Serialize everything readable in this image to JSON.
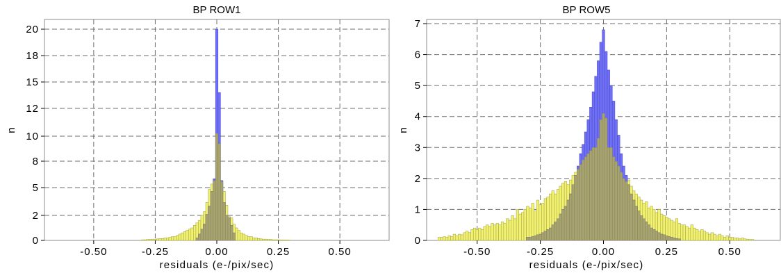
{
  "colors": {
    "blue_fill": "#7070f2",
    "blue_edge": "#4a4ad8",
    "yellow_fill": "#f2f270",
    "yellow_edge": "#a8a84a",
    "overlap_fill": "#a8a470",
    "grid": "#6e6e6e"
  },
  "chart_data": [
    {
      "type": "histogram",
      "title": "BP ROW1",
      "xlabel": "residuals (e-/pix/sec)",
      "ylabel": "n",
      "xlim": [
        -0.7,
        0.7
      ],
      "ylim": [
        0,
        20
      ],
      "y_scale": "nonlinear (tick labels as printed)",
      "x_ticks": [
        -0.5,
        -0.25,
        0.0,
        0.25,
        0.5
      ],
      "x_tick_labels": [
        "-0.50",
        "-0.25",
        "0.00",
        "0.25",
        "0.50"
      ],
      "y_tick_labels": [
        "0",
        "2",
        "5",
        "8",
        "10",
        "12",
        "15",
        "18",
        "20"
      ],
      "grid": true,
      "bin_width": 0.01,
      "series": [
        {
          "color": "blue",
          "x": [
            -0.08,
            -0.07,
            -0.06,
            -0.05,
            -0.04,
            -0.03,
            -0.02,
            -0.01,
            0.0,
            0.01,
            0.02,
            0.03,
            0.04,
            0.05,
            0.06,
            0.07
          ],
          "values": [
            0.2,
            0.5,
            0.9,
            1.3,
            2.1,
            3.0,
            4.6,
            6.0,
            20.0,
            13.8,
            5.8,
            3.4,
            2.0,
            1.8,
            1.2,
            0.6
          ]
        },
        {
          "color": "yellow",
          "x": [
            -0.3,
            -0.29,
            -0.28,
            -0.27,
            -0.26,
            -0.25,
            -0.24,
            -0.23,
            -0.22,
            -0.21,
            -0.2,
            -0.19,
            -0.18,
            -0.17,
            -0.16,
            -0.15,
            -0.14,
            -0.13,
            -0.12,
            -0.11,
            -0.1,
            -0.09,
            -0.08,
            -0.07,
            -0.06,
            -0.05,
            -0.04,
            -0.03,
            -0.02,
            -0.01,
            0.0,
            0.01,
            0.02,
            0.03,
            0.04,
            0.05,
            0.06,
            0.07,
            0.08,
            0.09,
            0.1,
            0.11,
            0.12,
            0.13,
            0.14,
            0.15,
            0.16,
            0.17,
            0.18,
            0.19,
            0.2,
            0.21,
            0.22,
            0.23,
            0.24,
            0.25,
            0.26,
            0.27,
            0.28,
            0.29,
            0.3
          ],
          "values": [
            0.05,
            0.05,
            0.08,
            0.08,
            0.1,
            0.1,
            0.12,
            0.15,
            0.15,
            0.2,
            0.2,
            0.25,
            0.3,
            0.3,
            0.4,
            0.5,
            0.6,
            0.7,
            0.8,
            0.9,
            1.0,
            1.2,
            1.4,
            1.6,
            2.0,
            2.4,
            3.4,
            4.8,
            5.4,
            5.8,
            10.2,
            9.4,
            5.7,
            4.6,
            3.1,
            1.9,
            1.8,
            1.3,
            1.0,
            0.8,
            0.6,
            0.5,
            0.4,
            0.3,
            0.3,
            0.2,
            0.2,
            0.15,
            0.12,
            0.1,
            0.1,
            0.08,
            0.08,
            0.05,
            0.05,
            0.05,
            0.04,
            0.04,
            0.03,
            0.03,
            0.02
          ]
        }
      ]
    },
    {
      "type": "histogram",
      "title": "BP ROW5",
      "xlabel": "residuals (e-/pix/sec)",
      "ylabel": "n",
      "xlim": [
        -0.7,
        0.7
      ],
      "ylim": [
        0,
        7
      ],
      "x_ticks": [
        -0.5,
        -0.25,
        0.0,
        0.25,
        0.5
      ],
      "x_tick_labels": [
        "-0.50",
        "-0.25",
        "0.00",
        "0.25",
        "0.50"
      ],
      "y_ticks": [
        0,
        1,
        2,
        3,
        4,
        5,
        6,
        7
      ],
      "y_tick_labels": [
        "0",
        "1",
        "2",
        "3",
        "4",
        "5",
        "6",
        "7"
      ],
      "grid": true,
      "bin_width": 0.01,
      "series": [
        {
          "color": "blue",
          "x": [
            -0.3,
            -0.29,
            -0.28,
            -0.27,
            -0.26,
            -0.25,
            -0.24,
            -0.23,
            -0.22,
            -0.21,
            -0.2,
            -0.19,
            -0.18,
            -0.17,
            -0.16,
            -0.15,
            -0.14,
            -0.13,
            -0.12,
            -0.11,
            -0.1,
            -0.09,
            -0.08,
            -0.07,
            -0.06,
            -0.05,
            -0.04,
            -0.03,
            -0.02,
            -0.01,
            0.0,
            0.01,
            0.02,
            0.03,
            0.04,
            0.05,
            0.06,
            0.07,
            0.08,
            0.09,
            0.1,
            0.11,
            0.12,
            0.13,
            0.14,
            0.15,
            0.16,
            0.17,
            0.18,
            0.19,
            0.2,
            0.21,
            0.22,
            0.23,
            0.24,
            0.25,
            0.26,
            0.27,
            0.28,
            0.29,
            0.3
          ],
          "values": [
            0.1,
            0.1,
            0.12,
            0.15,
            0.18,
            0.2,
            0.25,
            0.3,
            0.35,
            0.4,
            0.5,
            0.6,
            0.7,
            0.85,
            1.0,
            1.1,
            1.3,
            1.5,
            1.8,
            2.1,
            2.4,
            2.8,
            3.1,
            3.5,
            3.9,
            4.3,
            4.8,
            5.3,
            5.8,
            6.4,
            6.8,
            6.1,
            5.5,
            5.0,
            4.5,
            3.9,
            3.4,
            2.8,
            2.4,
            2.1,
            1.8,
            1.5,
            1.3,
            1.1,
            0.95,
            0.8,
            0.7,
            0.6,
            0.5,
            0.4,
            0.35,
            0.3,
            0.25,
            0.2,
            0.18,
            0.15,
            0.12,
            0.1,
            0.08,
            0.06,
            0.05
          ]
        },
        {
          "color": "yellow",
          "x": [
            -0.65,
            -0.64,
            -0.63,
            -0.62,
            -0.61,
            -0.6,
            -0.59,
            -0.58,
            -0.57,
            -0.56,
            -0.55,
            -0.54,
            -0.53,
            -0.52,
            -0.51,
            -0.5,
            -0.49,
            -0.48,
            -0.47,
            -0.46,
            -0.45,
            -0.44,
            -0.43,
            -0.42,
            -0.41,
            -0.4,
            -0.39,
            -0.38,
            -0.37,
            -0.36,
            -0.35,
            -0.34,
            -0.33,
            -0.32,
            -0.31,
            -0.3,
            -0.29,
            -0.28,
            -0.27,
            -0.26,
            -0.25,
            -0.24,
            -0.23,
            -0.22,
            -0.21,
            -0.2,
            -0.19,
            -0.18,
            -0.17,
            -0.16,
            -0.15,
            -0.14,
            -0.13,
            -0.12,
            -0.11,
            -0.1,
            -0.09,
            -0.08,
            -0.07,
            -0.06,
            -0.05,
            -0.04,
            -0.03,
            -0.02,
            -0.01,
            0.0,
            0.01,
            0.02,
            0.03,
            0.04,
            0.05,
            0.06,
            0.07,
            0.08,
            0.09,
            0.1,
            0.11,
            0.12,
            0.13,
            0.14,
            0.15,
            0.16,
            0.17,
            0.18,
            0.19,
            0.2,
            0.21,
            0.22,
            0.23,
            0.24,
            0.25,
            0.26,
            0.27,
            0.28,
            0.29,
            0.3,
            0.31,
            0.32,
            0.33,
            0.34,
            0.35,
            0.36,
            0.37,
            0.38,
            0.39,
            0.4,
            0.41,
            0.42,
            0.43,
            0.44,
            0.45,
            0.46,
            0.47,
            0.48,
            0.49,
            0.5,
            0.51,
            0.52,
            0.53,
            0.54,
            0.55,
            0.56,
            0.57,
            0.58,
            0.59
          ],
          "values": [
            0.1,
            0.1,
            0.12,
            0.1,
            0.15,
            0.12,
            0.2,
            0.15,
            0.2,
            0.18,
            0.25,
            0.3,
            0.25,
            0.35,
            0.4,
            0.35,
            0.4,
            0.35,
            0.45,
            0.5,
            0.45,
            0.55,
            0.5,
            0.55,
            0.5,
            0.6,
            0.55,
            0.7,
            0.65,
            0.8,
            0.7,
            1.0,
            0.85,
            0.9,
            1.0,
            1.1,
            1.05,
            1.2,
            0.95,
            1.3,
            1.15,
            1.2,
            1.35,
            1.4,
            1.5,
            1.6,
            1.5,
            1.65,
            1.75,
            1.85,
            1.9,
            1.8,
            1.95,
            2.1,
            2.2,
            2.3,
            2.45,
            2.6,
            2.7,
            2.8,
            2.9,
            3.0,
            3.0,
            3.3,
            3.9,
            4.1,
            3.95,
            3.0,
            3.0,
            2.7,
            2.55,
            2.4,
            2.2,
            2.0,
            1.9,
            1.95,
            1.75,
            1.6,
            1.5,
            1.4,
            1.3,
            1.2,
            1.25,
            1.05,
            1.1,
            1.0,
            0.9,
            1.0,
            0.85,
            0.8,
            0.75,
            0.7,
            0.65,
            0.6,
            0.7,
            0.55,
            0.5,
            0.5,
            0.45,
            0.4,
            0.5,
            0.4,
            0.35,
            0.3,
            0.35,
            0.3,
            0.25,
            0.2,
            0.25,
            0.2,
            0.15,
            0.2,
            0.15,
            0.1,
            0.15,
            0.1,
            0.1,
            0.08,
            0.08,
            0.05,
            0.08,
            0.05,
            0.04,
            0.03,
            0.03
          ]
        }
      ]
    }
  ]
}
